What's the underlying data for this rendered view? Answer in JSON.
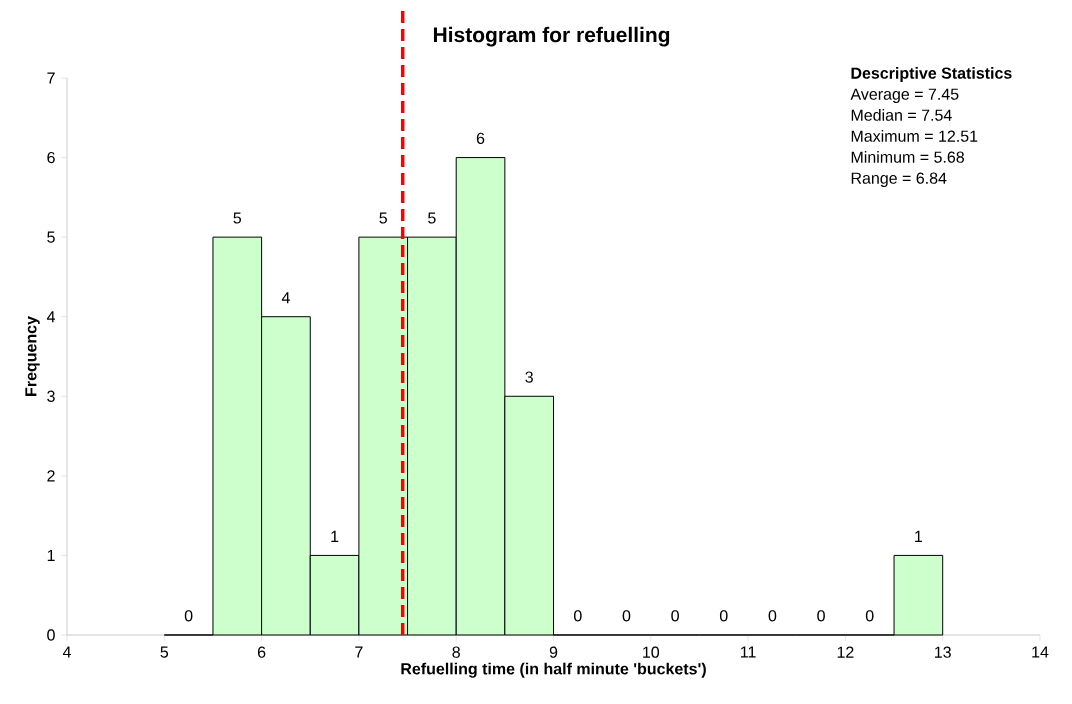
{
  "chart_data": {
    "type": "histogram",
    "title": "Histogram for refuelling",
    "xlabel": "Refuelling time (in half minute 'buckets')",
    "ylabel": "Frequency",
    "bins": [
      5,
      5.5,
      6,
      6.5,
      7,
      7.5,
      8,
      8.5,
      9,
      9.5,
      10,
      10.5,
      11,
      11.5,
      12,
      12.5,
      13
    ],
    "values": [
      0,
      5,
      4,
      1,
      5,
      5,
      6,
      3,
      0,
      0,
      0,
      0,
      0,
      0,
      0,
      1
    ],
    "color": "#ccffcc",
    "data_labels": true,
    "xlim": [
      4,
      14
    ],
    "xticks": [
      4,
      5,
      6,
      7,
      8,
      9,
      10,
      11,
      12,
      13,
      14
    ],
    "ylim": [
      0,
      7
    ],
    "yticks": [
      0,
      1,
      2,
      3,
      4,
      5,
      6,
      7
    ],
    "ref_lines": [
      {
        "axis": "x",
        "value": 7.45,
        "color": "#ff0000",
        "line_style": "dashed"
      }
    ],
    "annotations": [
      "Descriptive Statistics",
      "Average = 7.45",
      "Median = 7.54",
      "Maximum = 12.51",
      "Minimum = 5.68",
      "Range = 6.84"
    ],
    "grid": false
  }
}
